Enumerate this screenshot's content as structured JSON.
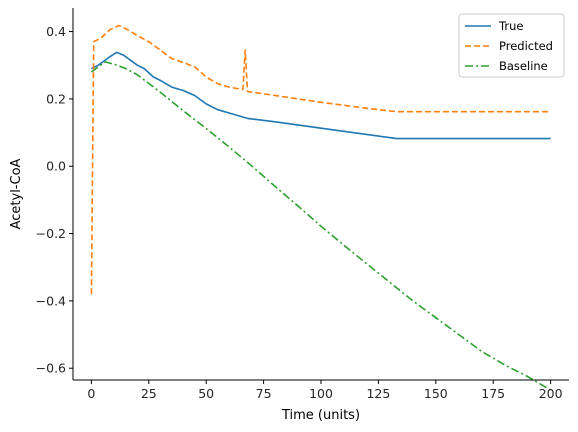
{
  "chart_data": {
    "type": "line",
    "xlabel": "Time (units)",
    "ylabel": "Acetyl-CoA",
    "xlim": [
      -8,
      208
    ],
    "ylim": [
      -0.635,
      0.47
    ],
    "xticks": [
      0,
      25,
      50,
      75,
      100,
      125,
      150,
      175,
      200
    ],
    "yticks": [
      -0.6,
      -0.4,
      -0.2,
      0.0,
      0.2,
      0.4
    ],
    "ytick_labels": [
      "−0.6",
      "−0.4",
      "−0.2",
      "0.0",
      "0.2",
      "0.4"
    ],
    "grid": false,
    "legend_position": "top-right",
    "series": [
      {
        "name": "True",
        "color": "#1f77b4",
        "dash": "solid",
        "points": [
          [
            0,
            0.29
          ],
          [
            3,
            0.3
          ],
          [
            5,
            0.31
          ],
          [
            8,
            0.325
          ],
          [
            11,
            0.338
          ],
          [
            14,
            0.33
          ],
          [
            17,
            0.315
          ],
          [
            20,
            0.3
          ],
          [
            23,
            0.29
          ],
          [
            27,
            0.265
          ],
          [
            30,
            0.255
          ],
          [
            35,
            0.235
          ],
          [
            40,
            0.225
          ],
          [
            45,
            0.21
          ],
          [
            50,
            0.185
          ],
          [
            55,
            0.168
          ],
          [
            60,
            0.158
          ],
          [
            68,
            0.142
          ],
          [
            80,
            0.132
          ],
          [
            100,
            0.113
          ],
          [
            133,
            0.082
          ],
          [
            150,
            0.082
          ],
          [
            175,
            0.082
          ],
          [
            200,
            0.082
          ]
        ]
      },
      {
        "name": "Predicted",
        "color": "#ff7f0e",
        "dash": "dashed",
        "points": [
          [
            0,
            -0.38
          ],
          [
            1,
            0.37
          ],
          [
            4,
            0.38
          ],
          [
            8,
            0.405
          ],
          [
            12,
            0.418
          ],
          [
            16,
            0.405
          ],
          [
            20,
            0.388
          ],
          [
            25,
            0.37
          ],
          [
            30,
            0.345
          ],
          [
            35,
            0.32
          ],
          [
            40,
            0.308
          ],
          [
            45,
            0.295
          ],
          [
            50,
            0.265
          ],
          [
            55,
            0.245
          ],
          [
            60,
            0.235
          ],
          [
            66,
            0.228
          ],
          [
            67,
            0.345
          ],
          [
            68,
            0.222
          ],
          [
            75,
            0.215
          ],
          [
            85,
            0.205
          ],
          [
            100,
            0.19
          ],
          [
            120,
            0.172
          ],
          [
            133,
            0.162
          ],
          [
            150,
            0.162
          ],
          [
            175,
            0.162
          ],
          [
            200,
            0.162
          ]
        ]
      },
      {
        "name": "Baseline",
        "color": "#2ca02c",
        "dash": "dashdot",
        "points": [
          [
            0,
            0.28
          ],
          [
            6,
            0.31
          ],
          [
            10,
            0.303
          ],
          [
            15,
            0.29
          ],
          [
            20,
            0.272
          ],
          [
            30,
            0.22
          ],
          [
            40,
            0.165
          ],
          [
            50,
            0.112
          ],
          [
            60,
            0.057
          ],
          [
            70,
            0.0
          ],
          [
            80,
            -0.06
          ],
          [
            90,
            -0.118
          ],
          [
            100,
            -0.178
          ],
          [
            110,
            -0.235
          ],
          [
            120,
            -0.29
          ],
          [
            130,
            -0.345
          ],
          [
            140,
            -0.4
          ],
          [
            150,
            -0.45
          ],
          [
            160,
            -0.5
          ],
          [
            170,
            -0.55
          ],
          [
            180,
            -0.59
          ],
          [
            190,
            -0.625
          ],
          [
            200,
            -0.665
          ]
        ]
      }
    ]
  }
}
